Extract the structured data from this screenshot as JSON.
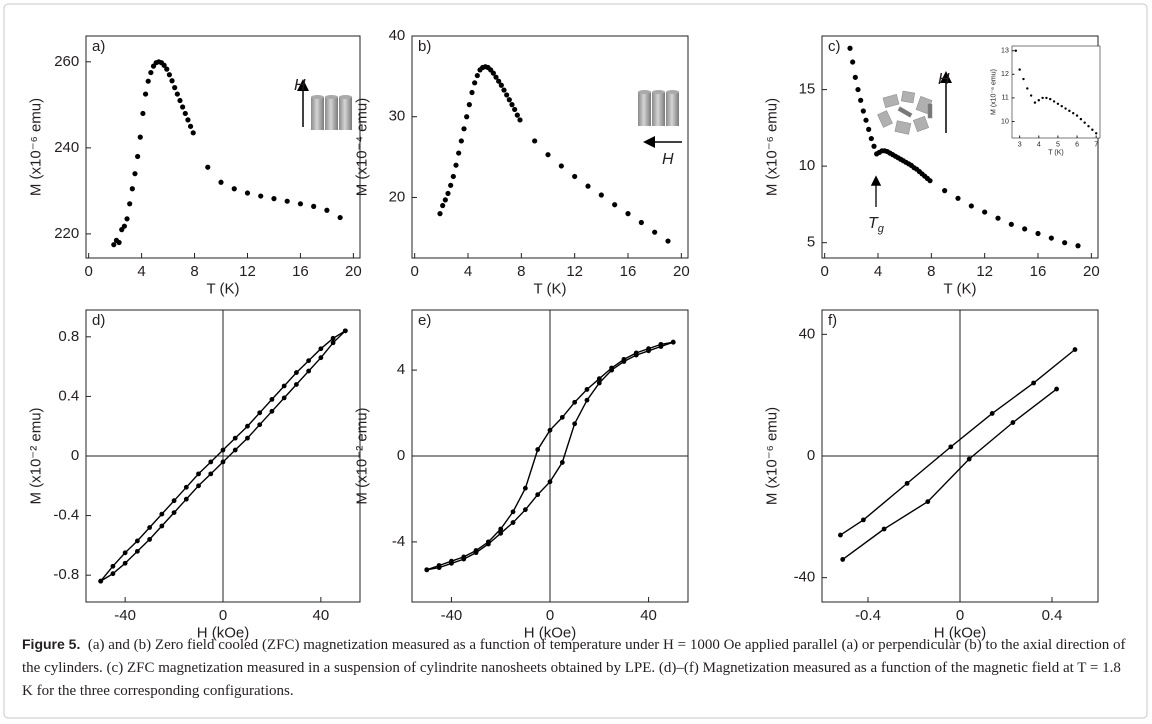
{
  "chart_data": [
    {
      "type": "scatter",
      "panel_label": "a)",
      "xlabel": "T (K)",
      "ylabel": "M (x10⁻⁶ emu)",
      "x": [
        1.9,
        2.1,
        2.3,
        2.5,
        2.7,
        2.9,
        3.1,
        3.3,
        3.5,
        3.7,
        3.9,
        4.1,
        4.3,
        4.5,
        4.7,
        4.9,
        5.1,
        5.3,
        5.5,
        5.7,
        5.9,
        6.1,
        6.3,
        6.5,
        6.7,
        6.9,
        7.1,
        7.3,
        7.5,
        7.7,
        7.9,
        9,
        10,
        11,
        12,
        13,
        14,
        15,
        16,
        17,
        18,
        19
      ],
      "values": [
        217.5,
        218.5,
        218,
        221,
        221.8,
        223.5,
        227,
        230.5,
        234,
        238,
        242.5,
        248,
        252.5,
        255.5,
        257.5,
        259,
        259.8,
        260,
        259.8,
        259.2,
        258.3,
        257,
        255.6,
        254,
        252.5,
        251,
        249.5,
        248,
        246.5,
        245,
        243.5,
        235.5,
        232,
        230.5,
        229.5,
        228.8,
        228.2,
        227.6,
        227,
        226.4,
        225.5,
        223.8
      ],
      "color": "#000000",
      "xlim": [
        -0.2,
        20.5
      ],
      "ylim": [
        214.4,
        266
      ],
      "xticks": [
        0,
        4,
        8,
        12,
        16,
        20
      ],
      "yticks": [
        220,
        240,
        260
      ],
      "annotations": [
        {
          "text": "H"
        }
      ]
    },
    {
      "type": "scatter",
      "panel_label": "b)",
      "xlabel": "T (K)",
      "ylabel": "M (x10⁻⁴ emu)",
      "x": [
        1.9,
        2.1,
        2.3,
        2.5,
        2.7,
        2.9,
        3.1,
        3.3,
        3.5,
        3.7,
        3.9,
        4.1,
        4.3,
        4.5,
        4.7,
        4.9,
        5.1,
        5.3,
        5.5,
        5.7,
        5.9,
        6.1,
        6.3,
        6.5,
        6.7,
        6.9,
        7.1,
        7.3,
        7.5,
        7.7,
        7.9,
        9,
        10,
        11,
        12,
        13,
        14,
        15,
        16,
        17,
        18,
        19
      ],
      "values": [
        18,
        19,
        19.7,
        20.5,
        21.5,
        22.6,
        24,
        25.5,
        27,
        28.5,
        30,
        31.5,
        33,
        34.2,
        35.1,
        35.8,
        36.1,
        36.2,
        36.1,
        35.8,
        35.4,
        34.9,
        34.4,
        33.9,
        33.3,
        32.7,
        32.1,
        31.5,
        30.9,
        30.2,
        29.6,
        27,
        25.3,
        23.9,
        22.6,
        21.4,
        20.3,
        19.1,
        18,
        16.9,
        15.7,
        14.6
      ],
      "color": "#000000",
      "xlim": [
        -0.2,
        20.5
      ],
      "ylim": [
        12.5,
        40
      ],
      "xticks": [
        0,
        4,
        8,
        12,
        16,
        20
      ],
      "yticks": [
        20,
        30,
        40
      ],
      "annotations": [
        {
          "text": "H"
        }
      ]
    },
    {
      "type": "scatter",
      "panel_label": "c)",
      "xlabel": "T (K)",
      "ylabel": "M (x10⁻⁶ emu)",
      "x": [
        1.9,
        2.1,
        2.3,
        2.5,
        2.7,
        2.9,
        3.1,
        3.3,
        3.5,
        3.7,
        3.9,
        4.1,
        4.3,
        4.5,
        4.7,
        4.9,
        5.1,
        5.3,
        5.5,
        5.7,
        5.9,
        6.1,
        6.3,
        6.5,
        6.7,
        6.9,
        7.1,
        7.3,
        7.5,
        7.7,
        7.9,
        9,
        10,
        11,
        12,
        13,
        14,
        15,
        16,
        17,
        18,
        19
      ],
      "values": [
        17.7,
        16.8,
        15.8,
        15,
        14.3,
        13.6,
        13,
        12.4,
        11.8,
        11.3,
        10.8,
        10.9,
        11,
        11,
        10.95,
        10.85,
        10.75,
        10.65,
        10.55,
        10.45,
        10.35,
        10.25,
        10.15,
        10.05,
        9.9,
        9.8,
        9.65,
        9.5,
        9.35,
        9.2,
        9.05,
        8.4,
        7.9,
        7.4,
        7,
        6.6,
        6.2,
        5.9,
        5.6,
        5.3,
        5,
        4.8
      ],
      "color": "#000000",
      "xlim": [
        -0.2,
        20.5
      ],
      "ylim": [
        4,
        18.5
      ],
      "xticks": [
        0,
        4,
        8,
        12,
        16,
        20
      ],
      "yticks": [
        5,
        10,
        15
      ],
      "annotations": [
        {
          "text": "H"
        },
        {
          "text": "T",
          "sub": "g"
        }
      ]
    },
    {
      "type": "scatter",
      "xlabel": "T (K)",
      "ylabel": "M (x10⁻⁶ emu)",
      "x": [
        2.8,
        3,
        3.2,
        3.4,
        3.6,
        3.8,
        4,
        4.2,
        4.4,
        4.6,
        4.8,
        5,
        5.2,
        5.4,
        5.6,
        5.8,
        6,
        6.2,
        6.4,
        6.6,
        6.8,
        7
      ],
      "values": [
        13,
        12.2,
        11.8,
        11.4,
        11.1,
        10.8,
        10.9,
        11,
        11,
        10.95,
        10.85,
        10.75,
        10.65,
        10.55,
        10.45,
        10.35,
        10.25,
        10.1,
        9.95,
        9.8,
        9.65,
        9.5
      ],
      "color": "#000000",
      "xlim": [
        2.6,
        7.2
      ],
      "ylim": [
        9.3,
        13.2
      ],
      "xticks": [
        3,
        4,
        5,
        6,
        7
      ],
      "yticks": [
        10,
        11,
        12,
        13
      ]
    },
    {
      "type": "line",
      "panel_label": "d)",
      "xlabel": "H (kOe)",
      "ylabel": "M (x10⁻² emu)",
      "zero_lines": true,
      "xlim": [
        -56,
        56
      ],
      "ylim": [
        -0.98,
        0.98
      ],
      "xticks": [
        -40,
        0,
        40
      ],
      "yticks": [
        -0.8,
        -0.4,
        0,
        0.4,
        0.8
      ],
      "series": [
        {
          "color": "#000000",
          "x": [
            -50,
            -45,
            -40,
            -35,
            -30,
            -25,
            -20,
            -15,
            -10,
            -5,
            0,
            5,
            10,
            15,
            20,
            25,
            30,
            35,
            40,
            45,
            50
          ],
          "values": [
            -0.84,
            -0.74,
            -0.65,
            -0.57,
            -0.48,
            -0.39,
            -0.3,
            -0.21,
            -0.12,
            -0.04,
            0.04,
            0.12,
            0.2,
            0.29,
            0.38,
            0.47,
            0.56,
            0.64,
            0.72,
            0.79,
            0.84
          ]
        },
        {
          "color": "#000000",
          "x": [
            -50,
            -45,
            -40,
            -35,
            -30,
            -25,
            -20,
            -15,
            -10,
            -5,
            0,
            5,
            10,
            15,
            20,
            25,
            30,
            35,
            40,
            45,
            50
          ],
          "values": [
            -0.84,
            -0.79,
            -0.72,
            -0.64,
            -0.56,
            -0.47,
            -0.38,
            -0.29,
            -0.2,
            -0.12,
            -0.04,
            0.04,
            0.12,
            0.21,
            0.3,
            0.39,
            0.48,
            0.57,
            0.66,
            0.76,
            0.84
          ]
        }
      ]
    },
    {
      "type": "line",
      "panel_label": "e)",
      "xlabel": "H (kOe)",
      "ylabel": "M (x10⁻² emu)",
      "zero_lines": true,
      "xlim": [
        -56,
        56
      ],
      "ylim": [
        -6.8,
        6.8
      ],
      "xticks": [
        -40,
        0,
        40
      ],
      "yticks": [
        -4,
        0,
        4
      ],
      "series": [
        {
          "color": "#000000",
          "x": [
            -50,
            -45,
            -40,
            -35,
            -30,
            -25,
            -20,
            -15,
            -10,
            -5,
            0,
            5,
            10,
            15,
            20,
            25,
            30,
            35,
            40,
            45,
            50
          ],
          "values": [
            -5.3,
            -5.1,
            -4.9,
            -4.7,
            -4.4,
            -4,
            -3.4,
            -2.6,
            -1.5,
            0.3,
            1.2,
            1.8,
            2.5,
            3.1,
            3.6,
            4.1,
            4.5,
            4.8,
            5,
            5.2,
            5.3
          ]
        },
        {
          "color": "#000000",
          "x": [
            -50,
            -45,
            -40,
            -35,
            -30,
            -25,
            -20,
            -15,
            -10,
            -5,
            0,
            5,
            10,
            15,
            20,
            25,
            30,
            35,
            40,
            45,
            50
          ],
          "values": [
            -5.3,
            -5.2,
            -5,
            -4.8,
            -4.5,
            -4.1,
            -3.6,
            -3.1,
            -2.5,
            -1.8,
            -1.2,
            -0.3,
            1.5,
            2.6,
            3.4,
            4,
            4.4,
            4.7,
            4.9,
            5.1,
            5.3
          ]
        }
      ]
    },
    {
      "type": "line",
      "panel_label": "f)",
      "xlabel": "H (kOe)",
      "ylabel": "M (x10⁻⁶ emu)",
      "zero_lines": true,
      "xlim": [
        -0.6,
        0.6
      ],
      "ylim": [
        -48,
        48
      ],
      "xticks": [
        -0.4,
        0,
        0.4
      ],
      "yticks": [
        -40,
        0,
        40
      ],
      "series": [
        {
          "color": "#000000",
          "x": [
            -0.52,
            -0.42,
            -0.23,
            -0.04,
            0.14,
            0.32,
            0.5
          ],
          "values": [
            -26,
            -21,
            -9,
            3,
            14,
            24,
            35
          ]
        },
        {
          "color": "#000000",
          "x": [
            -0.51,
            -0.33,
            -0.14,
            0.04,
            0.23,
            0.42
          ],
          "values": [
            -34,
            -24,
            -15,
            -1,
            11,
            22
          ]
        }
      ]
    }
  ],
  "caption": {
    "label": "Figure 5.",
    "text": "(a) and (b) Zero field cooled (ZFC) magnetization measured as a function of temperature under H = 1000 Oe applied parallel (a) or perpendicular (b) to the axial direction of the cylinders. (c) ZFC magnetization measured in a suspension of cylindrite nanosheets obtained by LPE. (d)–(f) Magnetization measured as a function of the magnetic field at T = 1.8 K for the three corresponding configurations."
  }
}
